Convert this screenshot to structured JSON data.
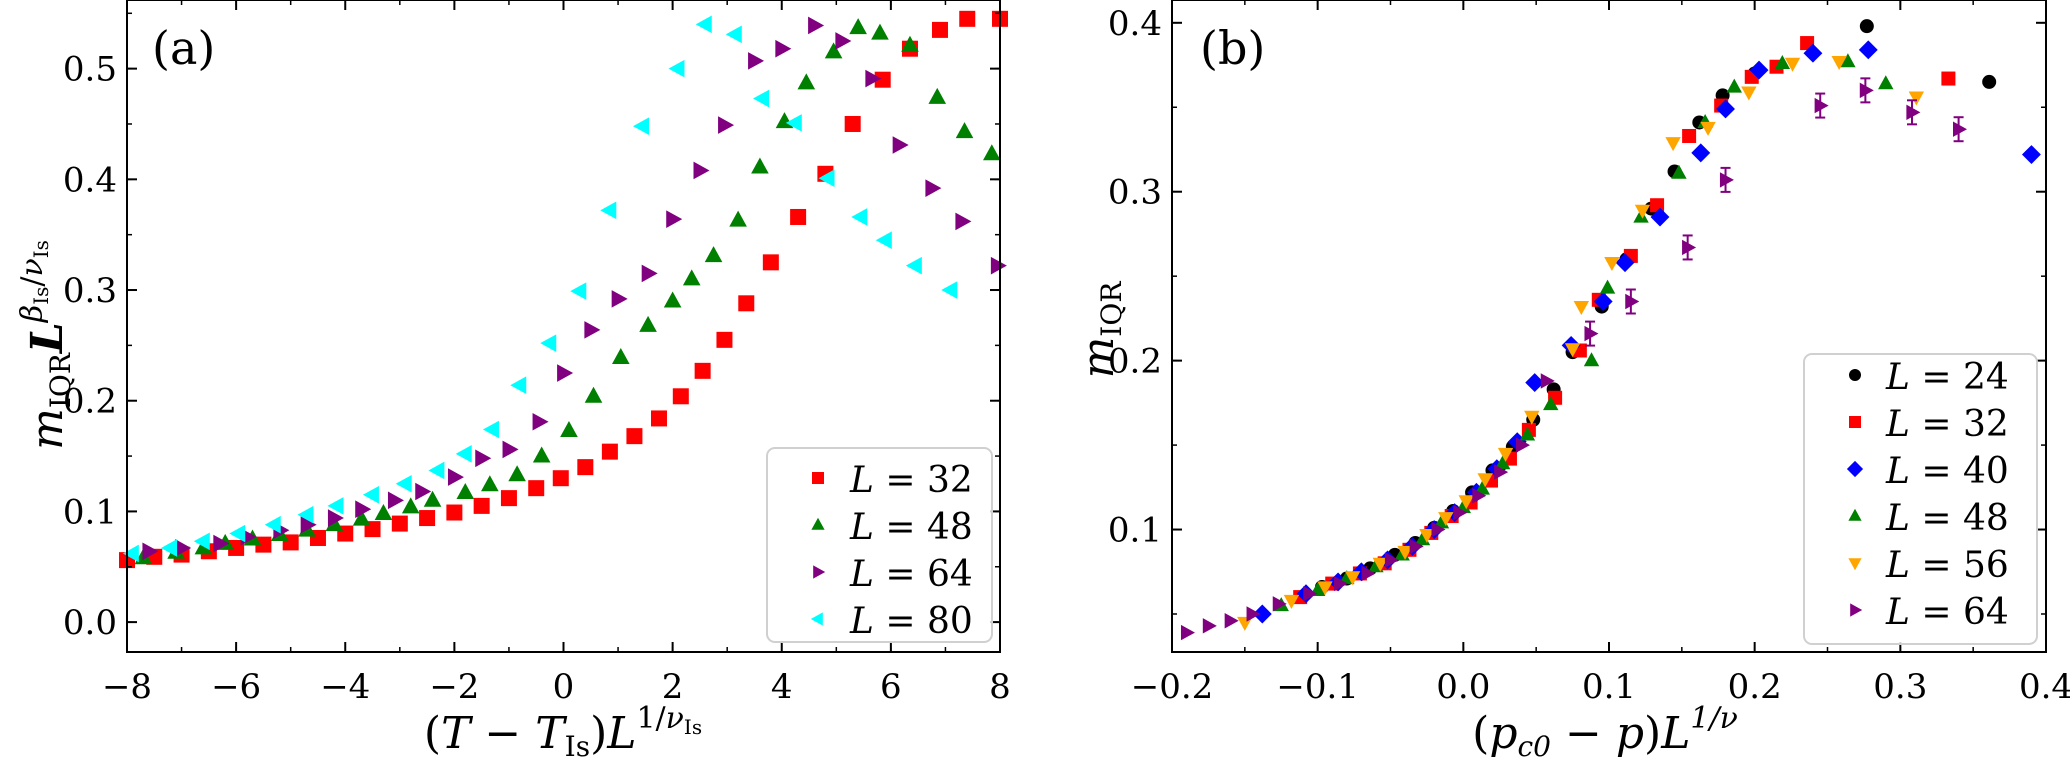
{
  "chart_data": [
    {
      "type": "scatter",
      "panel_label": "(a)",
      "xlabel": "(T − T_Is) L^{1/ν_Is}",
      "ylabel": "m_IQR L^{β_Is/ν_Is}",
      "xlim": [
        -8,
        8
      ],
      "ylim": [
        -0.027,
        0.562
      ],
      "xticks": [
        -8,
        -6,
        -4,
        -2,
        0,
        2,
        4,
        6,
        8
      ],
      "xtick_labels": [
        "−8",
        "−6",
        "−4",
        "−2",
        "0",
        "2",
        "4",
        "6",
        "8"
      ],
      "yticks": [
        0.0,
        0.1,
        0.2,
        0.3,
        0.4,
        0.5
      ],
      "ytick_labels": [
        "0.0",
        "0.1",
        "0.2",
        "0.3",
        "0.4",
        "0.5"
      ],
      "grid": false,
      "legend_position": "lower-right",
      "series": [
        {
          "name": "L = 32",
          "L": "32",
          "marker": "square",
          "color": "#ff0000",
          "x": [
            -8.0,
            -7.5,
            -7.0,
            -6.5,
            -6.0,
            -5.5,
            -5.0,
            -4.5,
            -4.0,
            -3.5,
            -3.0,
            -2.5,
            -2.0,
            -1.5,
            -1.0,
            -0.5,
            -0.05,
            0.4,
            0.85,
            1.3,
            1.75,
            2.15,
            2.55,
            2.95,
            3.35,
            3.8,
            4.3,
            4.8,
            5.3,
            5.85,
            6.35,
            6.9,
            7.4,
            8.0
          ],
          "y": [
            0.056,
            0.059,
            0.061,
            0.064,
            0.067,
            0.07,
            0.072,
            0.076,
            0.08,
            0.084,
            0.089,
            0.094,
            0.099,
            0.105,
            0.112,
            0.121,
            0.13,
            0.14,
            0.154,
            0.168,
            0.184,
            0.204,
            0.227,
            0.255,
            0.288,
            0.325,
            0.366,
            0.405,
            0.45,
            0.49,
            0.518,
            0.535,
            0.545,
            0.545
          ]
        },
        {
          "name": "L = 48",
          "L": "48",
          "marker": "triangle-up",
          "color": "#008000",
          "x": [
            -7.7,
            -7.1,
            -6.6,
            -6.2,
            -5.7,
            -5.2,
            -4.7,
            -4.2,
            -3.7,
            -3.3,
            -2.8,
            -2.4,
            -1.8,
            -1.35,
            -0.85,
            -0.4,
            0.1,
            0.55,
            1.05,
            1.55,
            2.0,
            2.35,
            2.75,
            3.2,
            3.6,
            4.05,
            4.45,
            4.95,
            5.4,
            5.8,
            6.35,
            6.85,
            7.35,
            7.85
          ],
          "y": [
            0.058,
            0.063,
            0.067,
            0.071,
            0.075,
            0.079,
            0.083,
            0.088,
            0.093,
            0.098,
            0.104,
            0.11,
            0.117,
            0.124,
            0.133,
            0.15,
            0.173,
            0.204,
            0.239,
            0.268,
            0.29,
            0.31,
            0.331,
            0.363,
            0.411,
            0.452,
            0.487,
            0.515,
            0.537,
            0.532,
            0.521,
            0.474,
            0.443,
            0.423
          ]
        },
        {
          "name": "L = 64",
          "L": "64",
          "marker": "triangle-right",
          "color": "#800080",
          "x": [
            -7.6,
            -7.0,
            -6.3,
            -5.8,
            -5.2,
            -4.7,
            -4.2,
            -3.7,
            -3.1,
            -2.6,
            -2.0,
            -1.5,
            -1.0,
            -0.45,
            0.0,
            0.5,
            1.0,
            1.55,
            2.0,
            2.5,
            2.95,
            3.5,
            4.0,
            4.6,
            5.1,
            5.65,
            6.15,
            6.75,
            7.3,
            7.95
          ],
          "y": [
            0.064,
            0.067,
            0.071,
            0.077,
            0.083,
            0.088,
            0.094,
            0.102,
            0.11,
            0.118,
            0.131,
            0.148,
            0.156,
            0.181,
            0.225,
            0.264,
            0.292,
            0.315,
            0.364,
            0.408,
            0.449,
            0.507,
            0.518,
            0.539,
            0.525,
            0.491,
            0.431,
            0.392,
            0.362,
            0.322
          ]
        },
        {
          "name": "L = 80",
          "L": "80",
          "marker": "triangle-left",
          "color": "#00ffff",
          "x": [
            -7.9,
            -7.2,
            -6.6,
            -5.95,
            -5.3,
            -4.7,
            -4.15,
            -3.5,
            -2.9,
            -2.3,
            -1.8,
            -1.3,
            -0.8,
            -0.25,
            0.3,
            0.85,
            1.45,
            2.1,
            2.6,
            3.15,
            3.65,
            4.25,
            4.85,
            5.45,
            5.9,
            6.45,
            7.1
          ],
          "y": [
            0.062,
            0.067,
            0.073,
            0.08,
            0.088,
            0.097,
            0.105,
            0.115,
            0.125,
            0.137,
            0.152,
            0.174,
            0.214,
            0.252,
            0.299,
            0.372,
            0.448,
            0.5,
            0.54,
            0.531,
            0.473,
            0.451,
            0.401,
            0.366,
            0.345,
            0.322,
            0.3
          ]
        }
      ]
    },
    {
      "type": "scatter",
      "panel_label": "(b)",
      "xlabel": "(p_c0 − p) L^{1/ν}",
      "ylabel": "m_IQR",
      "xlim": [
        -0.2,
        0.4
      ],
      "ylim": [
        0.0275,
        0.4135
      ],
      "xticks": [
        -0.2,
        -0.1,
        0.0,
        0.1,
        0.2,
        0.3,
        0.4
      ],
      "xtick_labels": [
        "−0.2",
        "−0.1",
        "0.0",
        "0.1",
        "0.2",
        "0.3",
        "0.4"
      ],
      "yticks": [
        0.1,
        0.2,
        0.3,
        0.4
      ],
      "ytick_labels": [
        "0.1",
        "0.2",
        "0.3",
        "0.4"
      ],
      "grid": false,
      "legend_position": "lower-right",
      "series": [
        {
          "name": "L = 24",
          "L": "24",
          "marker": "circle",
          "color": "#000000",
          "x": [
            -0.097,
            -0.08,
            -0.064,
            -0.047,
            -0.033,
            -0.02,
            -0.007,
            0.006,
            0.02,
            0.034,
            0.048,
            0.062,
            0.075,
            0.095,
            0.112,
            0.129,
            0.145,
            0.162,
            0.178,
            0.2,
            0.277,
            0.361
          ],
          "y": [
            0.066,
            0.071,
            0.077,
            0.085,
            0.092,
            0.101,
            0.111,
            0.122,
            0.135,
            0.149,
            0.165,
            0.183,
            0.205,
            0.232,
            0.26,
            0.29,
            0.312,
            0.341,
            0.357,
            0.37,
            0.398,
            0.365
          ]
        },
        {
          "name": "L = 32",
          "L": "32",
          "marker": "square",
          "color": "#ff0000",
          "x": [
            -0.112,
            -0.09,
            -0.071,
            -0.054,
            -0.037,
            -0.022,
            -0.008,
            0.005,
            0.019,
            0.032,
            0.045,
            0.063,
            0.08,
            0.093,
            0.115,
            0.133,
            0.155,
            0.177,
            0.198,
            0.215,
            0.236,
            0.333
          ],
          "y": [
            0.06,
            0.068,
            0.074,
            0.08,
            0.088,
            0.098,
            0.108,
            0.116,
            0.129,
            0.142,
            0.159,
            0.178,
            0.206,
            0.236,
            0.262,
            0.292,
            0.333,
            0.351,
            0.368,
            0.374,
            0.388,
            0.367
          ]
        },
        {
          "name": "L = 40",
          "L": "40",
          "marker": "diamond",
          "color": "#0000ff",
          "x": [
            -0.138,
            -0.108,
            -0.086,
            -0.07,
            -0.052,
            -0.035,
            -0.02,
            -0.006,
            0.009,
            0.023,
            0.037,
            0.049,
            0.074,
            0.096,
            0.111,
            0.135,
            0.163,
            0.18,
            0.203,
            0.24,
            0.278,
            0.39
          ],
          "y": [
            0.05,
            0.062,
            0.069,
            0.075,
            0.082,
            0.09,
            0.1,
            0.11,
            0.122,
            0.136,
            0.152,
            0.187,
            0.209,
            0.235,
            0.258,
            0.285,
            0.323,
            0.349,
            0.372,
            0.382,
            0.384,
            0.322
          ]
        },
        {
          "name": "L = 48",
          "L": "48",
          "marker": "triangle-up",
          "color": "#008000",
          "x": [
            -0.125,
            -0.1,
            -0.08,
            -0.06,
            -0.042,
            -0.028,
            -0.015,
            0.0,
            0.013,
            0.027,
            0.044,
            0.06,
            0.088,
            0.099,
            0.122,
            0.148,
            0.166,
            0.186,
            0.219,
            0.264,
            0.29
          ],
          "y": [
            0.055,
            0.064,
            0.071,
            0.078,
            0.085,
            0.094,
            0.104,
            0.113,
            0.124,
            0.139,
            0.156,
            0.174,
            0.2,
            0.243,
            0.285,
            0.311,
            0.341,
            0.362,
            0.376,
            0.377,
            0.364
          ]
        },
        {
          "name": "L = 56",
          "L": "56",
          "marker": "triangle-down",
          "color": "#ffa500",
          "x": [
            -0.15,
            -0.118,
            -0.095,
            -0.076,
            -0.057,
            -0.04,
            -0.025,
            -0.012,
            0.002,
            0.015,
            0.029,
            0.047,
            0.075,
            0.081,
            0.102,
            0.123,
            0.144,
            0.168,
            0.196,
            0.226,
            0.258,
            0.311
          ],
          "y": [
            0.045,
            0.058,
            0.066,
            0.072,
            0.08,
            0.087,
            0.097,
            0.107,
            0.117,
            0.13,
            0.145,
            0.167,
            0.207,
            0.232,
            0.258,
            0.289,
            0.329,
            0.338,
            0.359,
            0.376,
            0.377,
            0.356
          ]
        },
        {
          "name": "L = 64",
          "L": "64",
          "marker": "triangle-right",
          "color": "#800080",
          "x": [
            -0.19,
            -0.175,
            -0.16,
            -0.145,
            -0.127,
            -0.106,
            -0.085,
            -0.066,
            -0.05,
            -0.033,
            -0.018,
            -0.003,
            0.01,
            0.025,
            0.04,
            0.057,
            0.087,
            0.115,
            0.154,
            0.18,
            0.245,
            0.276,
            0.308,
            0.34
          ],
          "y": [
            0.039,
            0.043,
            0.046,
            0.05,
            0.056,
            0.062,
            0.068,
            0.074,
            0.082,
            0.09,
            0.1,
            0.11,
            0.12,
            0.134,
            0.15,
            0.188,
            0.216,
            0.235,
            0.267,
            0.307,
            0.351,
            0.36,
            0.347,
            0.337
          ]
        }
      ]
    }
  ],
  "panels": [
    {
      "panel_label": "(a)",
      "legend": [
        {
          "label_L": "L",
          "label_eq": "=",
          "label_val": "32"
        },
        {
          "label_L": "L",
          "label_eq": "=",
          "label_val": "48"
        },
        {
          "label_L": "L",
          "label_eq": "=",
          "label_val": "64"
        },
        {
          "label_L": "L",
          "label_eq": "=",
          "label_val": "80"
        }
      ],
      "ylabel_parts": {
        "m": "m",
        "sub": "IQR",
        "L": "L",
        "sup_beta": "β",
        "sup_beta_sub": "Is",
        "slash": "/",
        "sup_nu": "ν",
        "sup_nu_sub": "Is"
      },
      "xlabel_parts": {
        "open": "(",
        "T": "T",
        "minus": " − ",
        "T2": "T",
        "sub": "Is",
        "close": ")",
        "L": "L",
        "sup_1": "1/",
        "sup_nu": "ν",
        "sup_nu_sub": "Is"
      }
    },
    {
      "panel_label": "(b)",
      "legend": [
        {
          "label_L": "L",
          "label_eq": "=",
          "label_val": "24"
        },
        {
          "label_L": "L",
          "label_eq": "=",
          "label_val": "32"
        },
        {
          "label_L": "L",
          "label_eq": "=",
          "label_val": "40"
        },
        {
          "label_L": "L",
          "label_eq": "=",
          "label_val": "48"
        },
        {
          "label_L": "L",
          "label_eq": "=",
          "label_val": "56"
        },
        {
          "label_L": "L",
          "label_eq": "=",
          "label_val": "64"
        }
      ],
      "ylabel_parts": {
        "m": "m",
        "sub": "IQR"
      },
      "xlabel_parts": {
        "open": "(",
        "p": "p",
        "sub": "c0",
        "minus": " − ",
        "p2": "p",
        "close": ")",
        "L": "L",
        "sup": "1/ν"
      }
    }
  ]
}
